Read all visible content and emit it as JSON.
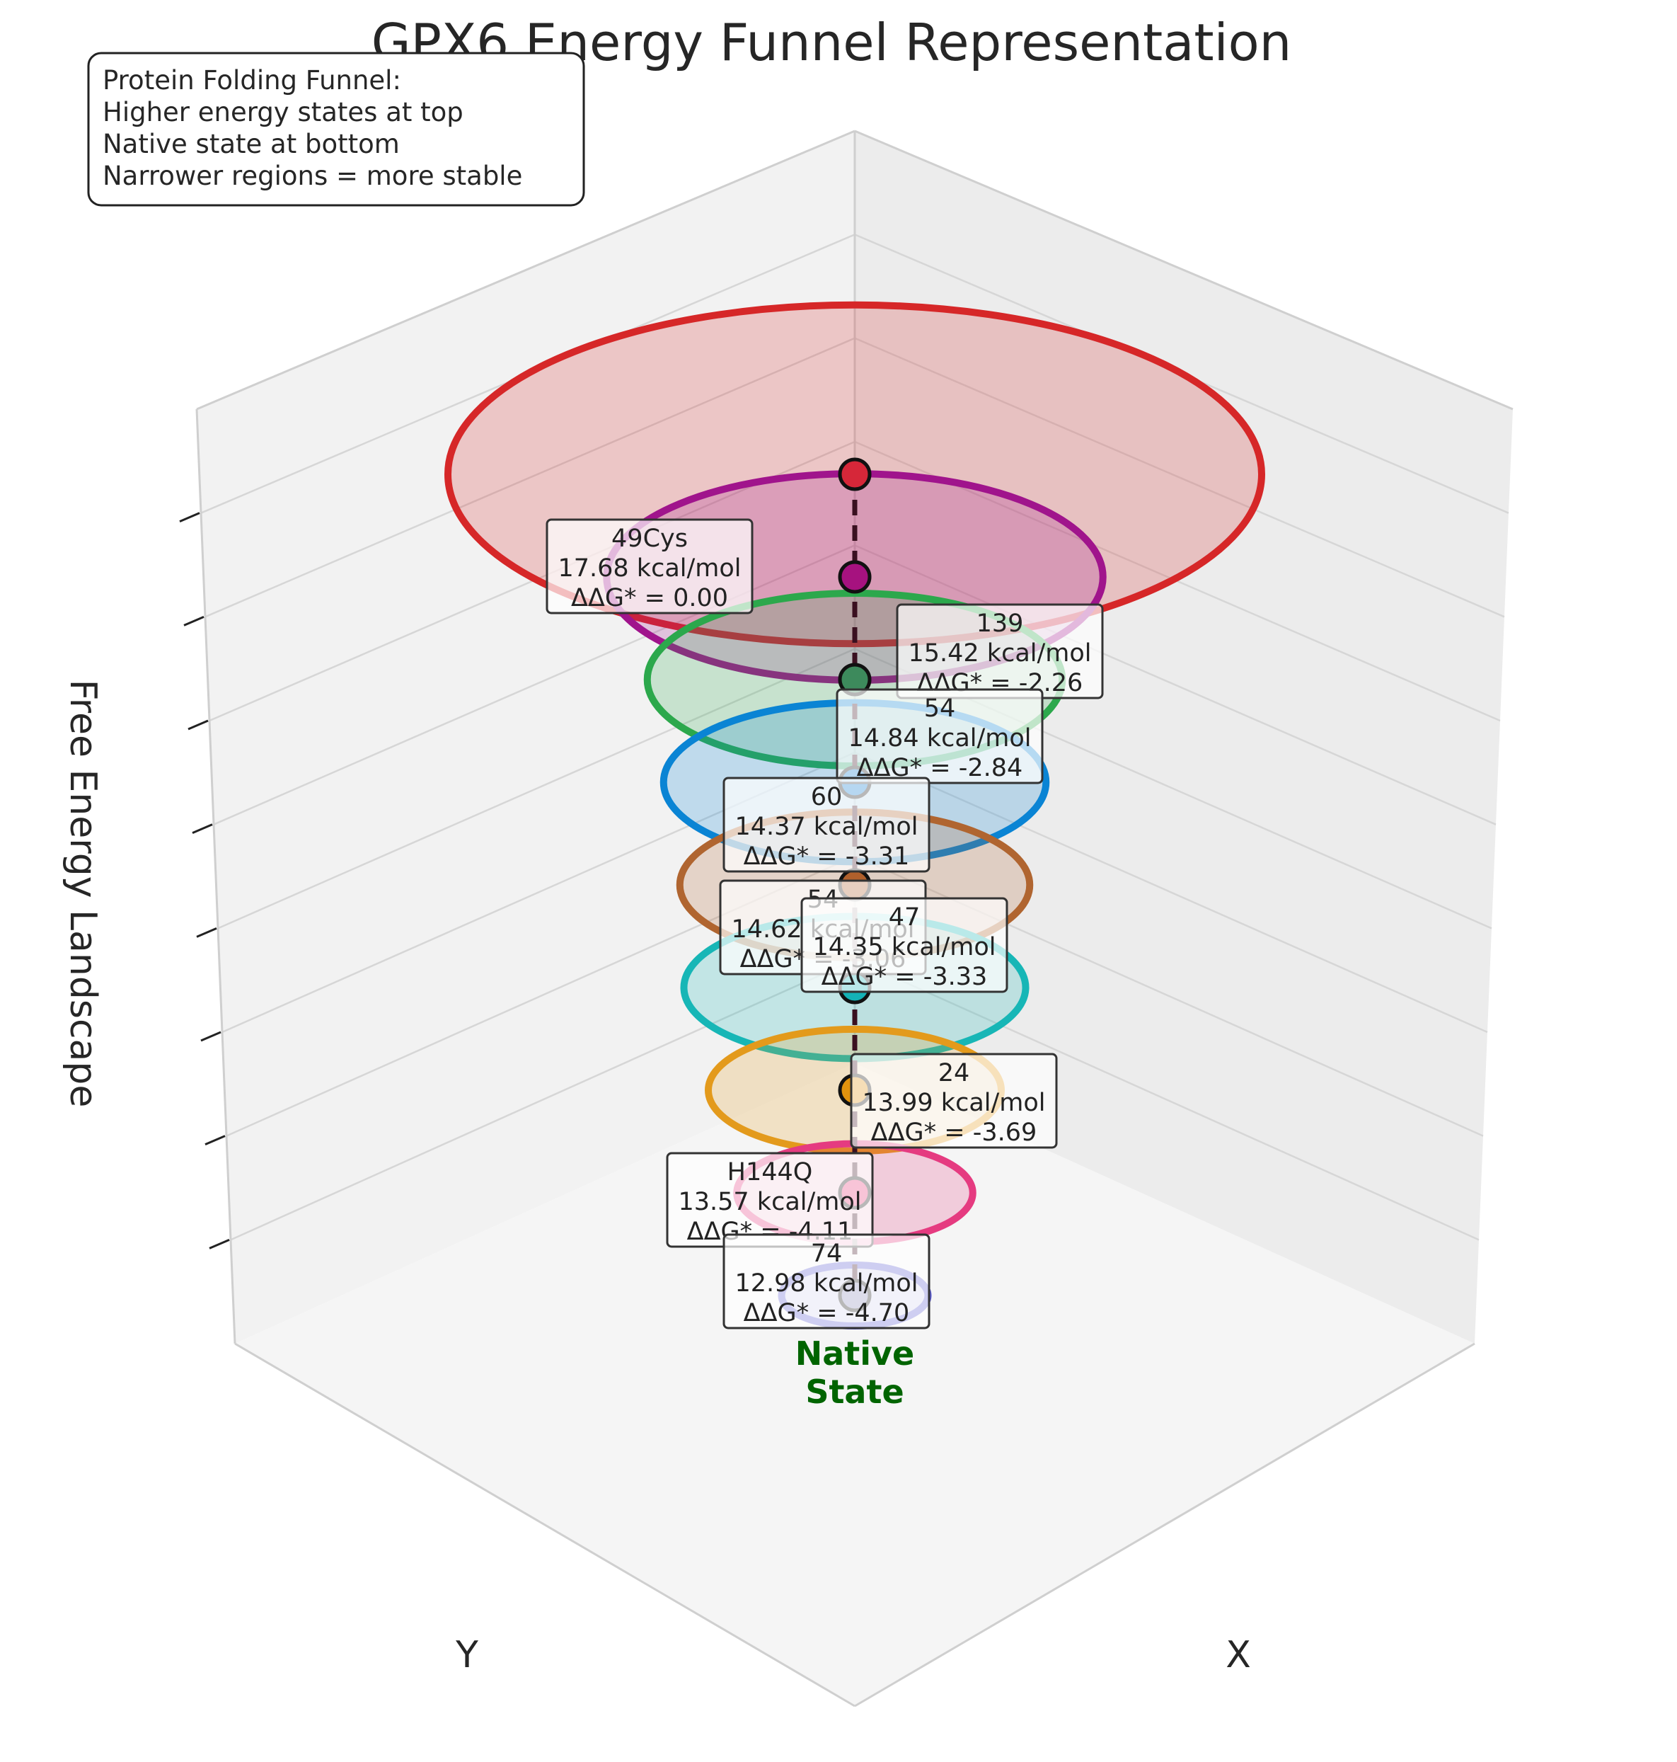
{
  "chart_data": {
    "type": "3d-funnel",
    "title": "GPX6 Energy Funnel Representation",
    "zlabel": "Free Energy Landscape",
    "xlabel": "X",
    "ylabel": "Y",
    "legend_box": {
      "placement": "top-left",
      "lines": [
        "Protein Folding Funnel:",
        "Higher energy states at top",
        "Native state at bottom",
        "Narrower regions = more stable"
      ]
    },
    "native_label": [
      "Native",
      "State"
    ],
    "levels": [
      {
        "name": "49Cys",
        "energy": "17.68 kcal/mol",
        "ddg": "ΔΔG* = 0.00",
        "energy_value": 17.68,
        "ddg_value": 0.0,
        "radius": 1.0,
        "color": "#d62728",
        "marker_color": "#d62739",
        "label_side": "left"
      },
      {
        "name": "139",
        "energy": "15.42 kcal/mol",
        "ddg": "ΔΔG* = -2.26",
        "energy_value": 15.42,
        "ddg_value": -2.26,
        "radius": 0.61,
        "color": "#a0148c",
        "marker_color": "#a6127f",
        "label_side": "right"
      },
      {
        "name": "54",
        "energy": "14.84 kcal/mol",
        "ddg": "ΔΔG* = -2.84",
        "energy_value": 14.84,
        "ddg_value": -2.84,
        "radius": 0.51,
        "color": "#2ca84c",
        "marker_color": "#3d8a5c",
        "label_side": "right"
      },
      {
        "name": "60",
        "energy": "14.37 kcal/mol",
        "ddg": "ΔΔG* = -3.31",
        "energy_value": 14.37,
        "ddg_value": -3.31,
        "radius": 0.47,
        "color": "#0a84d4",
        "marker_color": "#0a78d0",
        "label_side": "left"
      },
      {
        "name": "54",
        "energy": "14.62 kcal/mol",
        "ddg": "ΔΔG* = -3.06",
        "energy_value": 14.62,
        "ddg_value": -3.06,
        "radius": 0.43,
        "color": "#b06530",
        "marker_color": "#b0602c",
        "label_side": "left"
      },
      {
        "name": "47",
        "energy": "14.35 kcal/mol",
        "ddg": "ΔΔG* = -3.33",
        "energy_value": 14.35,
        "ddg_value": -3.33,
        "radius": 0.42,
        "color": "#17b6b6",
        "marker_color": "#14b2b6",
        "label_side": "right"
      },
      {
        "name": "24",
        "energy": "13.99 kcal/mol",
        "ddg": "ΔΔG* = -3.69",
        "energy_value": 13.99,
        "ddg_value": -3.69,
        "radius": 0.36,
        "color": "#e39a1c",
        "marker_color": "#e0920e",
        "label_side": "right"
      },
      {
        "name": "H144Q",
        "energy": "13.57 kcal/mol",
        "ddg": "ΔΔG* = -4.11",
        "energy_value": 13.57,
        "ddg_value": -4.11,
        "radius": 0.29,
        "color": "#e53b80",
        "marker_color": "#e83a78",
        "label_side": "left"
      },
      {
        "name": "74",
        "energy": "12.98 kcal/mol",
        "ddg": "ΔΔG* = -4.70",
        "energy_value": 12.98,
        "ddg_value": -4.7,
        "radius": 0.18,
        "color": "#5b5bd0",
        "marker_color": "#8a8ab8",
        "label_side": "left"
      }
    ],
    "grid": true
  }
}
